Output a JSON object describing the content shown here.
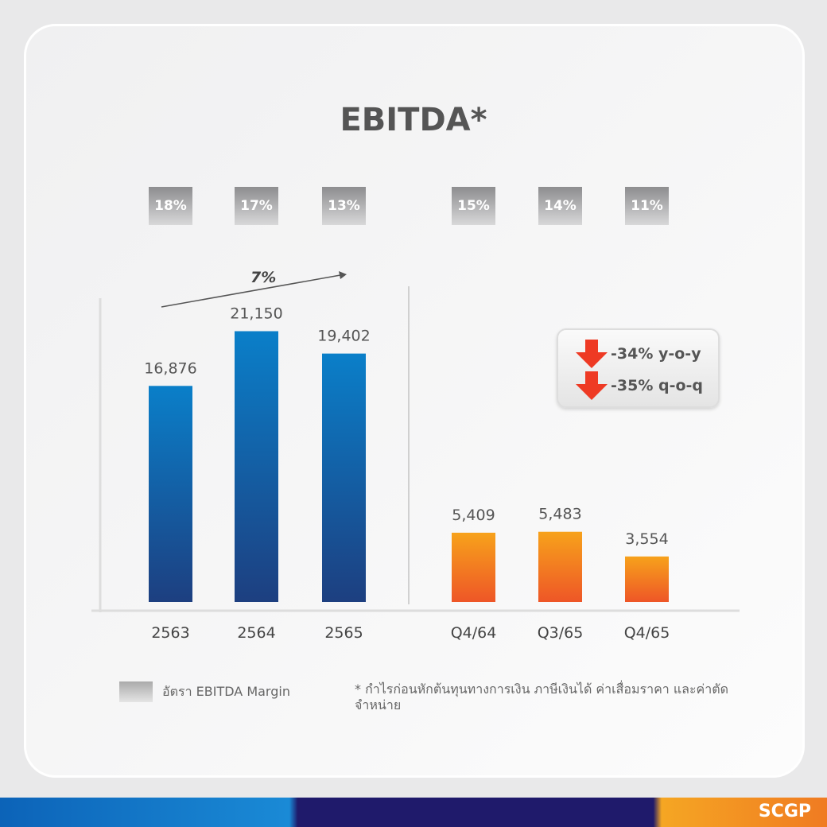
{
  "chart_data": {
    "type": "bar",
    "title": "EBITDA*",
    "categories": [
      "2563",
      "2564",
      "2565",
      "Q4/64",
      "Q3/65",
      "Q4/65"
    ],
    "values": [
      16876,
      21150,
      19402,
      5409,
      5483,
      3554
    ],
    "value_labels": [
      "16,876",
      "21,150",
      "19,402",
      "5,409",
      "5,483",
      "3,554"
    ],
    "margins": [
      "18%",
      "17%",
      "13%",
      "15%",
      "14%",
      "11%"
    ],
    "growth_label": "7%",
    "callouts": [
      "-34% y-o-y",
      "-35% q-o-q"
    ],
    "legend": "อัตรา EBITDA Margin",
    "note": "* กำไรก่อนหักต้นทุนทางการเงิน ภาษีเงินได้ ค่าเสื่อมราคา และค่าตัดจำหน่าย",
    "colors": {
      "annual": "#0a7fc9",
      "quarterly": "#f7a21b",
      "annual_bottom": "#1d3f80",
      "quarterly_bottom": "#ee5627"
    }
  },
  "brand": "SCGP"
}
